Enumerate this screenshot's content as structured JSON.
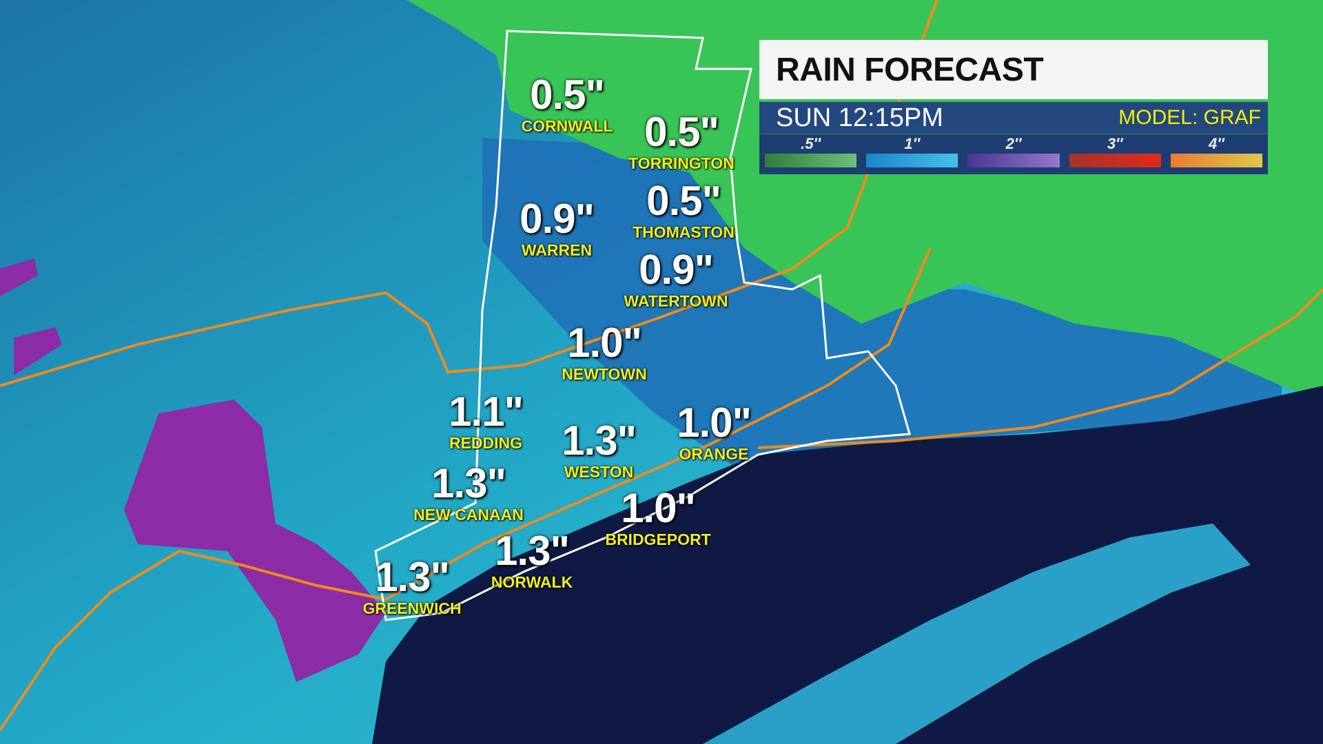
{
  "panel": {
    "title": "RAIN FORECAST",
    "time": "SUN  12:15PM",
    "model": "MODEL: GRAF",
    "legend": [
      {
        "label": ".5″",
        "from": "#2f7f3a",
        "to": "#6cbf7a"
      },
      {
        "label": "1″",
        "from": "#1a86c8",
        "to": "#45c0ea"
      },
      {
        "label": "2″",
        "from": "#4a3590",
        "to": "#9478cc"
      },
      {
        "label": "3″",
        "from": "#a8322a",
        "to": "#e02a1a"
      },
      {
        "label": "4″",
        "from": "#e97c30",
        "to": "#dcc84a"
      }
    ]
  },
  "cities": [
    {
      "value": "0.5\"",
      "name": "CORNWALL"
    },
    {
      "value": "0.5\"",
      "name": "TORRINGTON"
    },
    {
      "value": "0.9\"",
      "name": "WARREN"
    },
    {
      "value": "0.5\"",
      "name": "THOMASTON"
    },
    {
      "value": "0.9\"",
      "name": "WATERTOWN"
    },
    {
      "value": "1.0\"",
      "name": "NEWTOWN"
    },
    {
      "value": "1.1\"",
      "name": "REDDING"
    },
    {
      "value": "1.3\"",
      "name": "WESTON"
    },
    {
      "value": "1.0\"",
      "name": "ORANGE"
    },
    {
      "value": "1.3\"",
      "name": "NEW CANAAN"
    },
    {
      "value": "1.0\"",
      "name": "BRIDGEPORT"
    },
    {
      "value": "1.3\"",
      "name": "NORWALK"
    },
    {
      "value": "1.3\"",
      "name": "GREENWICH"
    }
  ],
  "colors": {
    "land_low": "#27b5c8",
    "land_mid": "#1c77b8",
    "green": "#3fc85a",
    "purple": "#8a2aa8",
    "water": "#101a45",
    "roads": "#f08a1c"
  }
}
